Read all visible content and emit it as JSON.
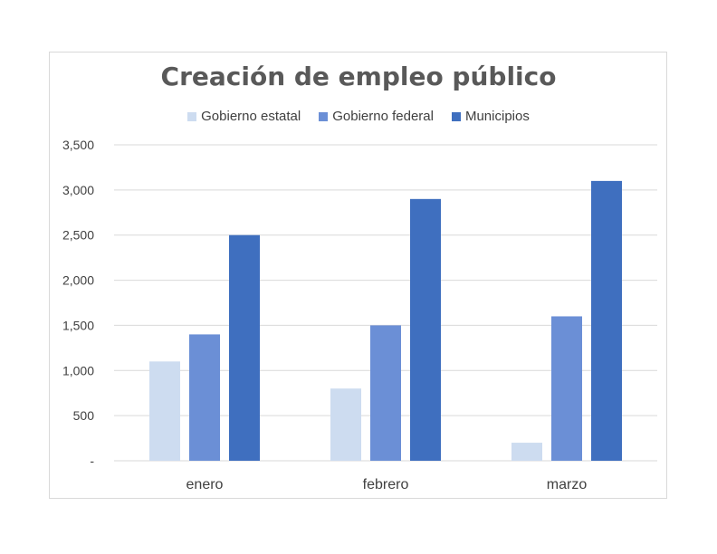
{
  "chart_data": {
    "type": "bar",
    "title": "Creación de empleo público",
    "categories": [
      "enero",
      "febrero",
      "marzo"
    ],
    "series": [
      {
        "name": "Gobierno estatal",
        "values": [
          1100,
          800,
          200
        ],
        "color": "#cddcf0"
      },
      {
        "name": "Gobierno federal",
        "values": [
          1400,
          1500,
          1600
        ],
        "color": "#6b8fd6"
      },
      {
        "name": "Municipios",
        "values": [
          2500,
          2900,
          3100
        ],
        "color": "#3f6fbf"
      }
    ],
    "ylim": [
      0,
      3500
    ],
    "yticks": [
      0,
      500,
      1000,
      1500,
      2000,
      2500,
      3000,
      3500
    ],
    "ytick_labels": [
      "-",
      "500",
      "1,000",
      "1,500",
      "2,000",
      "2,500",
      "3,000",
      "3,500"
    ],
    "grid": true,
    "legend_position": "top"
  }
}
